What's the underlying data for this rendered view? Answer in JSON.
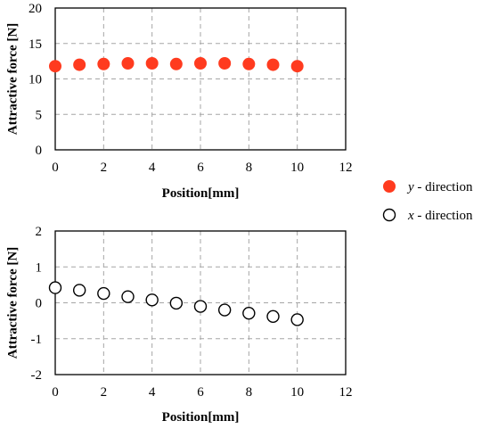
{
  "chart_data": [
    {
      "type": "scatter",
      "xlabel": "Position[mm]",
      "ylabel": "Attractive force [N]",
      "xlim": [
        0,
        12
      ],
      "ylim": [
        0,
        20
      ],
      "x_ticks": [
        0,
        2,
        4,
        6,
        8,
        10,
        12
      ],
      "y_ticks": [
        0,
        5,
        10,
        15,
        20
      ],
      "grid": true,
      "series": [
        {
          "name": "y - direction",
          "marker": "filled-circle",
          "color": "#ff3b1f",
          "x": [
            0,
            1,
            2,
            3,
            4,
            5,
            6,
            7,
            8,
            9,
            10
          ],
          "y": [
            11.8,
            12.0,
            12.1,
            12.2,
            12.2,
            12.1,
            12.2,
            12.2,
            12.1,
            12.0,
            11.8
          ]
        }
      ]
    },
    {
      "type": "scatter",
      "xlabel": "Position[mm]",
      "ylabel": "Attractive force [N]",
      "xlim": [
        0,
        12
      ],
      "ylim": [
        -2,
        2
      ],
      "x_ticks": [
        0,
        2,
        4,
        6,
        8,
        10,
        12
      ],
      "y_ticks": [
        -2,
        -1,
        0,
        1,
        2
      ],
      "grid": true,
      "series": [
        {
          "name": "x - direction",
          "marker": "open-circle",
          "color": "#000000",
          "x": [
            0,
            1,
            2,
            3,
            4,
            5,
            6,
            7,
            8,
            9,
            10
          ],
          "y": [
            0.42,
            0.35,
            0.26,
            0.17,
            0.08,
            -0.01,
            -0.1,
            -0.2,
            -0.29,
            -0.38,
            -0.47
          ]
        }
      ]
    }
  ],
  "legend": {
    "placement": "right",
    "items": [
      {
        "var": "y",
        "text": " - direction",
        "marker": "filled-circle",
        "color": "#ff3b1f"
      },
      {
        "var": "x",
        "text": " - direction",
        "marker": "open-circle",
        "color": "#000000"
      }
    ]
  }
}
